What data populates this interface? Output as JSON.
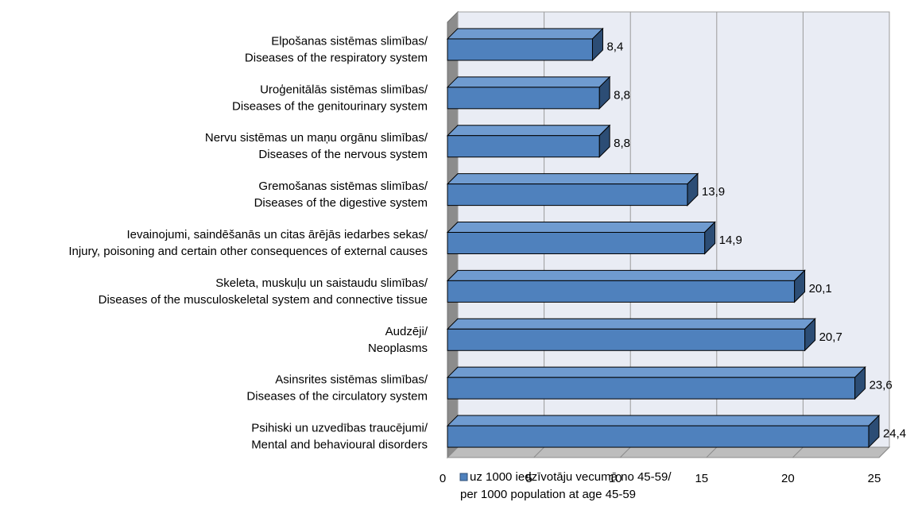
{
  "chart_data": {
    "type": "bar",
    "orientation": "horizontal",
    "style": "3d",
    "categories": [
      [
        "Elpošanas sistēmas slimības/",
        "Diseases of the respiratory system"
      ],
      [
        "Uroģenitālās sistēmas slimības/",
        "Diseases of the genitourinary system"
      ],
      [
        "Nervu sistēmas un maņu orgānu slimības/",
        "Diseases of the nervous system"
      ],
      [
        "Gremošanas sistēmas slimības/",
        "Diseases of the digestive system"
      ],
      [
        "Ievainojumi, saindēšanās un citas ārējās iedarbes sekas/",
        "Injury, poisoning and certain other consequences of external causes"
      ],
      [
        "Skeleta, muskuļu un saistaudu slimības/",
        "Diseases of the musculoskeletal system and connective tissue"
      ],
      [
        "Audzēji/",
        "Neoplasms"
      ],
      [
        "Asinsrites sistēmas slimības/",
        "Diseases of the circulatory system"
      ],
      [
        "Psihiski un uzvedības traucējumi/",
        "Mental and behavioural disorders"
      ]
    ],
    "series": [
      {
        "name": [
          "uz 1000 iedzīvotāju vecumā no 45-59/",
          "per 1000 population at age 45-59"
        ],
        "values": [
          8.4,
          8.8,
          8.8,
          13.9,
          14.9,
          20.1,
          20.7,
          23.6,
          24.4
        ],
        "labels": [
          "8,4",
          "8,8",
          "8,8",
          "13,9",
          "14,9",
          "20,1",
          "20,7",
          "23,6",
          "24,4"
        ],
        "color": "#4f81bd"
      }
    ],
    "xlim": [
      0,
      25
    ],
    "xticks": [
      0,
      5,
      10,
      15,
      20,
      25
    ],
    "grid": true,
    "legend_position": "bottom",
    "colors": {
      "bar_front": "#4f81bd",
      "bar_top": "#6f9bd0",
      "bar_side": "#2c4d75",
      "wall": "#e9ecf4",
      "floor": "#bdbdbd"
    }
  }
}
